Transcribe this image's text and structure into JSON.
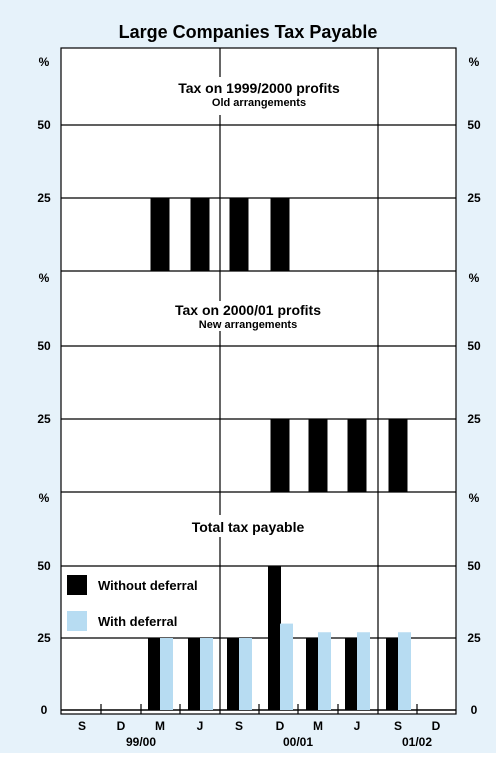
{
  "colors": {
    "background": "#e6f2fa",
    "plot_bg": "#ffffff",
    "without": "#000000",
    "with": "#b7dcf2"
  },
  "chart_data": {
    "title": "Large Companies Tax Payable",
    "type": "bar",
    "unit": "%",
    "categories": [
      "S",
      "D",
      "M",
      "J",
      "S",
      "D",
      "M",
      "J",
      "S",
      "D"
    ],
    "year_labels": [
      "99/00",
      "00/01",
      "01/02"
    ],
    "panels": [
      {
        "title": "Tax on 1999/2000 profits",
        "subtitle": "Old arrangements",
        "ylim": [
          0,
          60
        ],
        "yticks": [
          25,
          50
        ],
        "series": [
          {
            "values": [
              0,
              0,
              25,
              25,
              25,
              25,
              0,
              0,
              0,
              0
            ]
          }
        ]
      },
      {
        "title": "Tax on 2000/01 profits",
        "subtitle": "New arrangements",
        "ylim": [
          0,
          60
        ],
        "yticks": [
          25,
          50
        ],
        "series": [
          {
            "values": [
              0,
              0,
              0,
              0,
              0,
              25,
              25,
              25,
              25,
              0
            ]
          }
        ]
      },
      {
        "title": "Total tax payable",
        "subtitle": "",
        "ylim": [
          0,
          60
        ],
        "yticks": [
          0,
          25,
          50
        ],
        "series": [
          {
            "name": "Without deferral",
            "values": [
              0,
              0,
              25,
              25,
              25,
              50,
              25,
              25,
              25,
              0
            ]
          },
          {
            "name": "With deferral",
            "values": [
              0,
              0,
              25,
              25,
              25,
              30,
              27,
              27,
              27,
              0
            ]
          }
        ]
      }
    ]
  }
}
